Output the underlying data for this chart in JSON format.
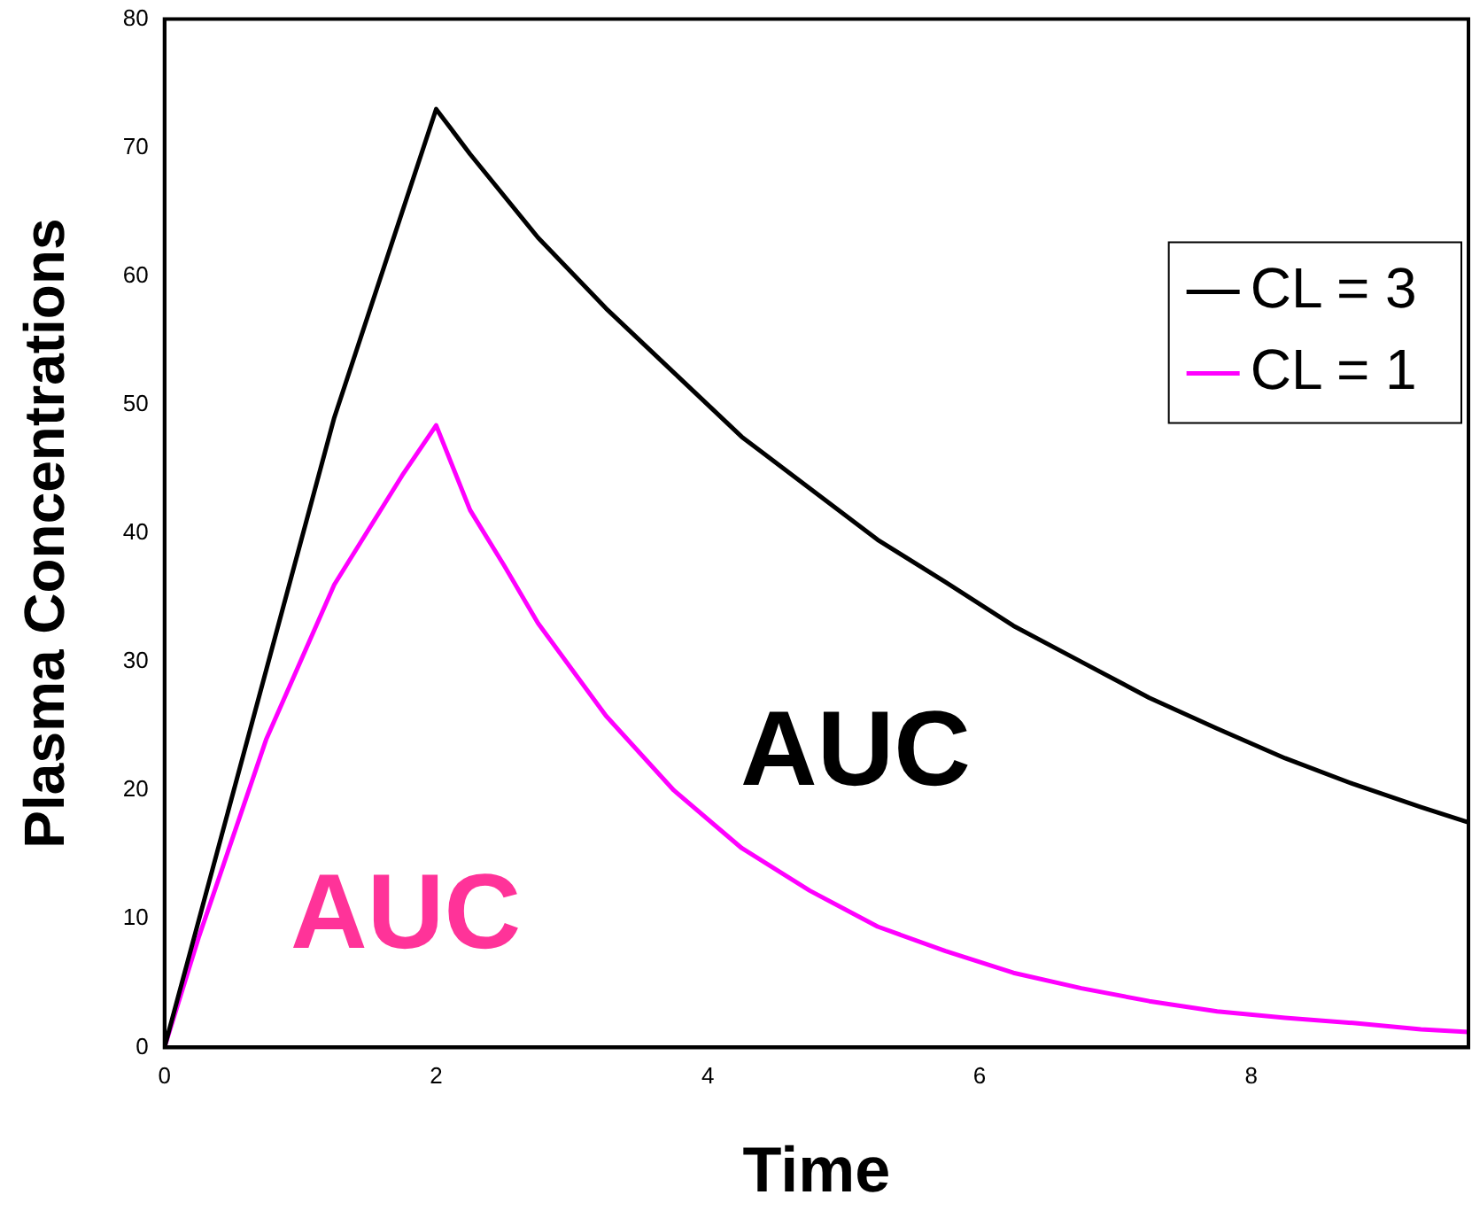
{
  "chart_data": {
    "type": "line",
    "xlabel": "Time",
    "ylabel": "Plasma Concentrations",
    "xlim": [
      0,
      9.6
    ],
    "xticks": [
      0,
      2,
      4,
      6,
      8
    ],
    "ylim": [
      0,
      80
    ],
    "yticks": [
      0,
      10,
      20,
      30,
      40,
      50,
      60,
      70,
      80
    ],
    "grid": false,
    "legend": "top right",
    "marker": "none",
    "line_style": "solid",
    "series": [
      {
        "name": "CL = 3",
        "color": "#000000",
        "x": [
          0,
          1.25,
          2,
          2.25,
          2.75,
          3.25,
          3.75,
          4.25,
          4.75,
          5.25,
          5.75,
          6.25,
          6.75,
          7.25,
          7.75,
          8.25,
          8.75,
          9.25,
          9.6
        ],
        "values": [
          0,
          49,
          73,
          69.5,
          63,
          57.5,
          52.5,
          47.5,
          43.5,
          39.5,
          36.2,
          32.8,
          30,
          27.2,
          24.8,
          22.5,
          20.5,
          18.7,
          17.5
        ]
      },
      {
        "name": "CL = 1",
        "color": "#ff00ff",
        "x": [
          0,
          0.25,
          0.75,
          1.25,
          1.75,
          2,
          2.25,
          2.5,
          2.75,
          3.25,
          3.75,
          4.25,
          4.75,
          5.25,
          5.75,
          6.25,
          6.75,
          7.25,
          7.75,
          8.25,
          8.75,
          9.25,
          9.6
        ],
        "values": [
          0,
          8.5,
          24,
          36,
          44.5,
          48.4,
          41.8,
          37.5,
          33,
          25.8,
          20,
          15.5,
          12.2,
          9.4,
          7.5,
          5.8,
          4.6,
          3.6,
          2.8,
          2.3,
          1.9,
          1.4,
          1.2
        ]
      }
    ],
    "annotations": [
      "AUC",
      "AUC"
    ]
  }
}
